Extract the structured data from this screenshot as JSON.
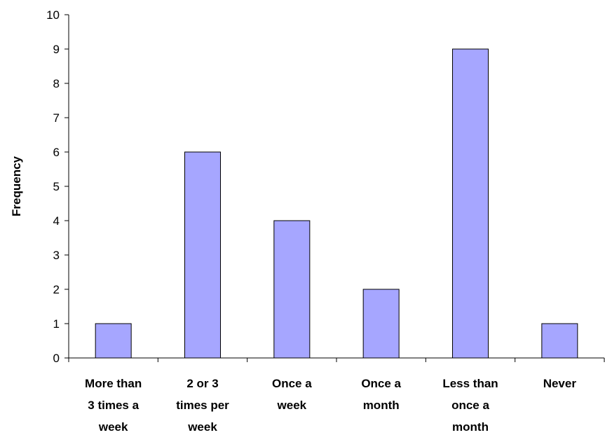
{
  "colors": {
    "bar_fill": "#a6a6ff",
    "bar_stroke": "#000000",
    "axis": "#000000",
    "background": "#ffffff"
  },
  "chart_data": {
    "type": "bar",
    "title": "",
    "xlabel": "",
    "ylabel": "Frequency",
    "ylim": [
      0,
      10
    ],
    "yticks": [
      "0",
      "1",
      "2",
      "3",
      "4",
      "5",
      "6",
      "7",
      "8",
      "9",
      "10"
    ],
    "grid": false,
    "legend": "none",
    "categories": [
      [
        "More than",
        "3 times a",
        "week"
      ],
      [
        "2 or 3",
        "times per",
        "week"
      ],
      [
        "Once a",
        "week"
      ],
      [
        "Once a",
        "month"
      ],
      [
        "Less than",
        "once a",
        "month"
      ],
      [
        "Never"
      ]
    ],
    "values": [
      1,
      6,
      4,
      2,
      9,
      1
    ]
  }
}
